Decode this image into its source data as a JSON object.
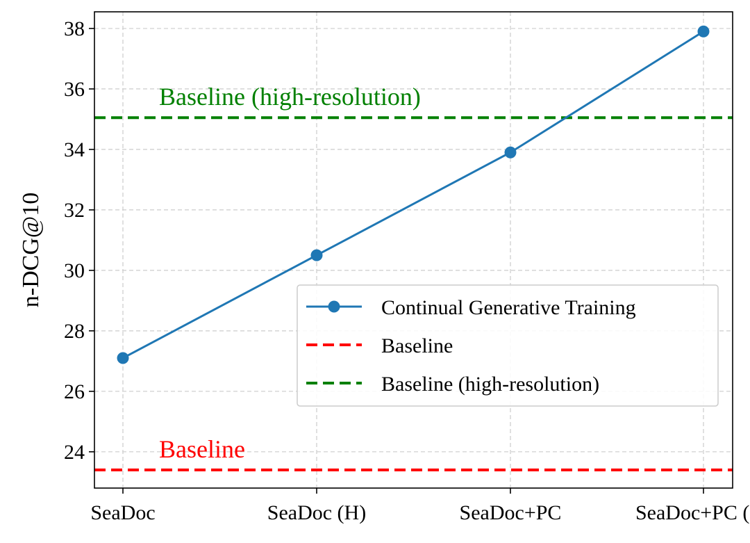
{
  "chart_data": {
    "type": "line",
    "categories": [
      "SeaDoc",
      "SeaDoc (H)",
      "SeaDoc+PC",
      "SeaDoc+PC (H)"
    ],
    "series": [
      {
        "name": "Continual Generative Training",
        "values": [
          27.1,
          30.5,
          33.9,
          37.9
        ],
        "color": "#1f77b4",
        "style": "solid-with-markers"
      }
    ],
    "reference_lines": [
      {
        "name": "Baseline",
        "value": 23.4,
        "color": "#ff0000",
        "style": "dashed",
        "annotation": "Baseline"
      },
      {
        "name": "Baseline (high-resolution)",
        "value": 35.05,
        "color": "#008000",
        "style": "dashed",
        "annotation": "Baseline (high-resolution)"
      }
    ],
    "xlabel": "",
    "ylabel": "n-DCG@10",
    "ylim": [
      22.8,
      38.55
    ],
    "yticks": [
      24,
      26,
      28,
      30,
      32,
      34,
      36,
      38
    ],
    "grid": true,
    "legend_position": "center-right"
  }
}
